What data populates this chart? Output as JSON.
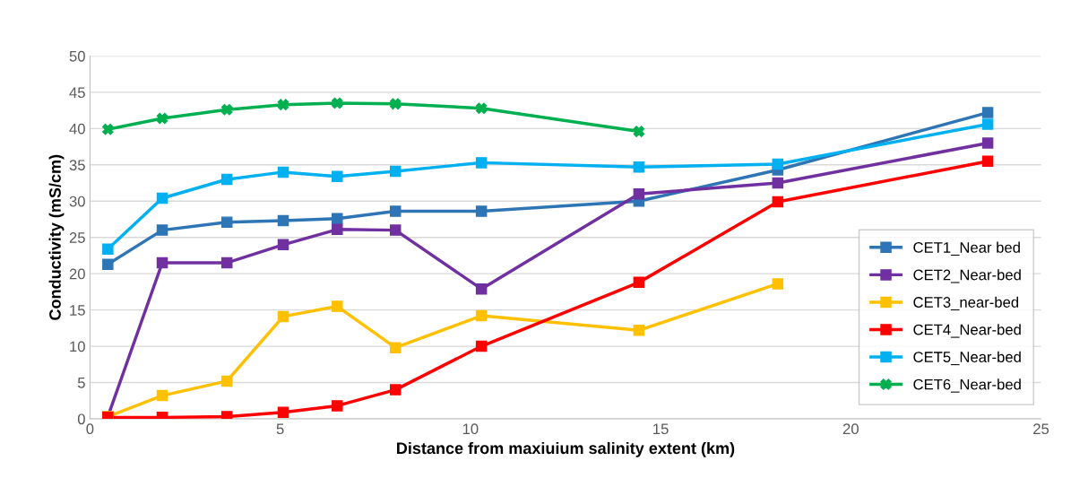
{
  "chart_data": {
    "type": "line",
    "xlabel": "Distance from maxiuium salinity extent (km)",
    "ylabel": "Conductivity (mS/cm)",
    "xlim": [
      0,
      25
    ],
    "xticks": [
      0,
      5,
      10,
      15,
      20,
      25
    ],
    "ylim": [
      0,
      50
    ],
    "yticks": [
      0,
      5,
      10,
      15,
      20,
      25,
      30,
      35,
      40,
      45,
      50
    ],
    "grid": "y",
    "legend": "right",
    "marker": "square",
    "line_style": "solid",
    "x": [
      0.47,
      1.9,
      3.6,
      5.08,
      6.5,
      8.03,
      10.29,
      14.43,
      18.08,
      23.6
    ],
    "series": [
      {
        "name": "CET1_Near bed",
        "color": "#2e75b6",
        "values": [
          21.3,
          26,
          27.1,
          27.3,
          27.6,
          28.6,
          28.6,
          30,
          34.3,
          42.2
        ]
      },
      {
        "name": "CET2_Near-bed",
        "color": "#7030a0",
        "values": [
          0.3,
          21.5,
          21.5,
          24,
          26.1,
          26,
          17.9,
          31,
          32.5,
          38
        ]
      },
      {
        "name": "CET3_near-bed",
        "color": "#ffc000",
        "values": [
          0.3,
          3.2,
          5.2,
          14.1,
          15.5,
          9.8,
          14.2,
          12.2,
          18.6,
          null
        ]
      },
      {
        "name": "CET4_Near-bed",
        "color": "#ff0000",
        "values": [
          0.2,
          0.2,
          0.3,
          0.9,
          1.8,
          4,
          10,
          18.8,
          29.9,
          35.5
        ]
      },
      {
        "name": "CET5_Near-bed",
        "color": "#00b0f0",
        "values": [
          23.4,
          30.4,
          33,
          34,
          33.4,
          34.1,
          35.3,
          34.7,
          35.1,
          40.6
        ]
      },
      {
        "name": "CET6_Near-bed",
        "color": "#00b050",
        "marker": "cross",
        "values": [
          39.9,
          41.4,
          42.6,
          43.3,
          43.5,
          43.4,
          42.8,
          39.6,
          null,
          null
        ]
      }
    ]
  }
}
